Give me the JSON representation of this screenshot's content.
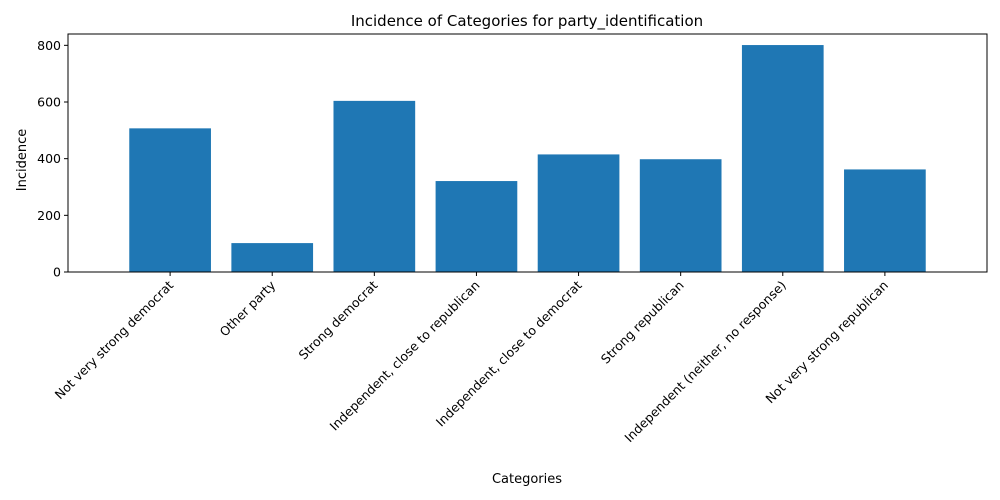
{
  "chart_data": {
    "type": "bar",
    "title": "Incidence of Categories for party_identification",
    "xlabel": "Categories",
    "ylabel": "Incidence",
    "categories": [
      "Not very strong democrat",
      "Other party",
      "Strong democrat",
      "Independent, close to republican",
      "Independent, close to democrat",
      "Strong republican",
      "Independent (neither, no response)",
      "Not very strong republican"
    ],
    "values": [
      507,
      102,
      604,
      321,
      415,
      398,
      801,
      362
    ],
    "ylim": [
      0,
      840
    ],
    "yticks": [
      0,
      200,
      400,
      600,
      800
    ],
    "bar_color": "#1f77b4",
    "grid": false,
    "legend": "none"
  }
}
